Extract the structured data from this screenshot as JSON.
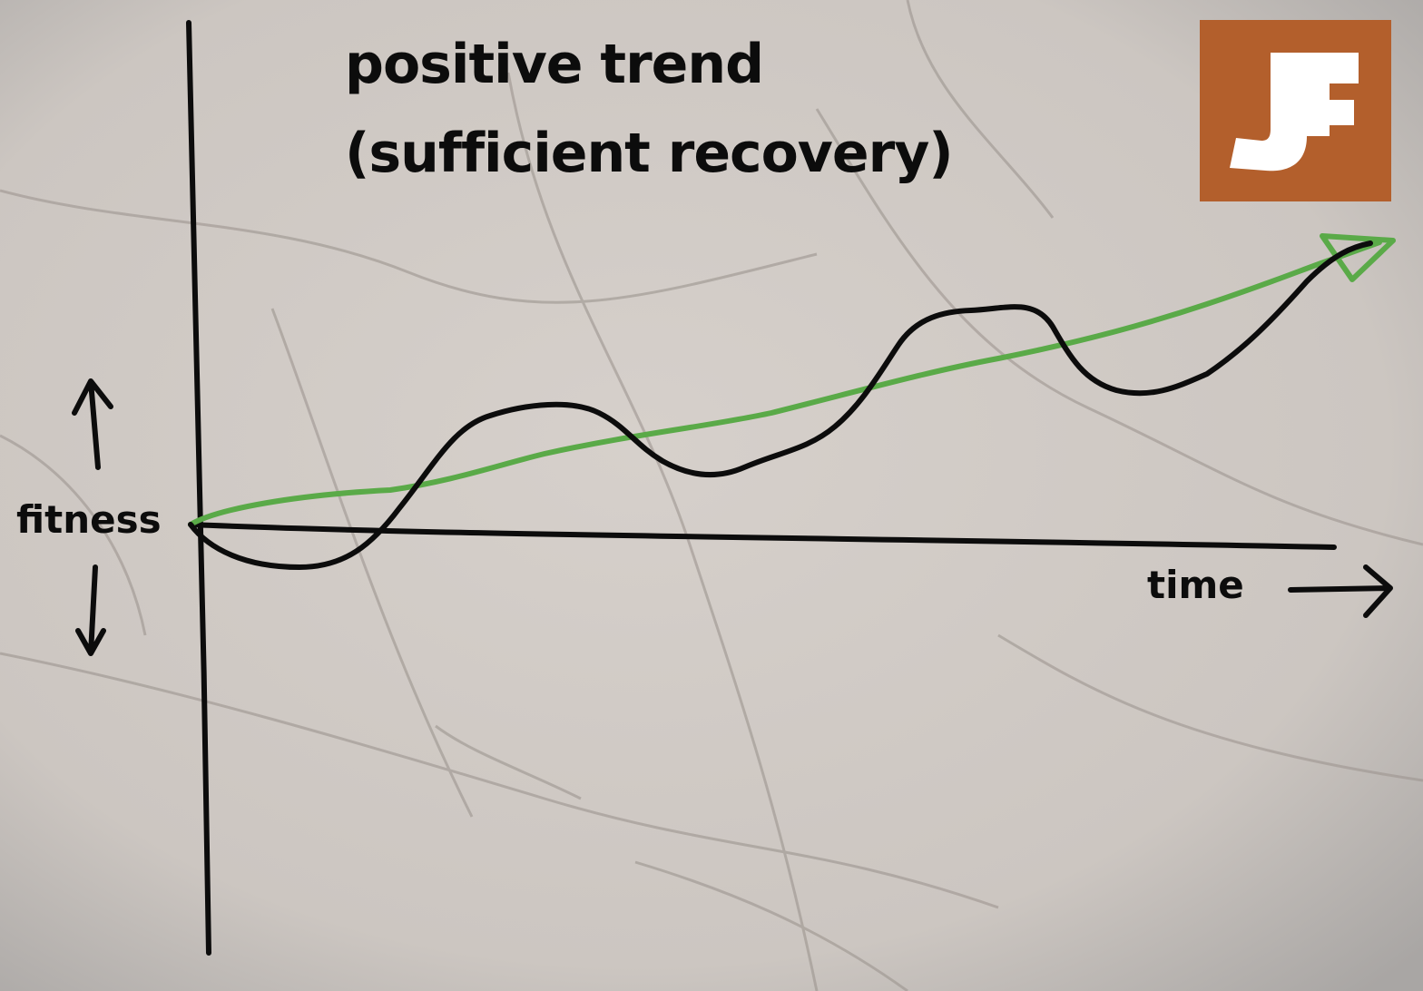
{
  "title_line1": "positive trend",
  "title_line2": "(sufficient recovery)",
  "y_axis_label": "fitness",
  "x_axis_label": "time",
  "logo": {
    "text": "JF",
    "color": "#b35f2c"
  },
  "colors": {
    "trend_line": "#5aaa48",
    "fitness_curve": "#0c0c0c",
    "background": "#cfc9c4"
  }
}
